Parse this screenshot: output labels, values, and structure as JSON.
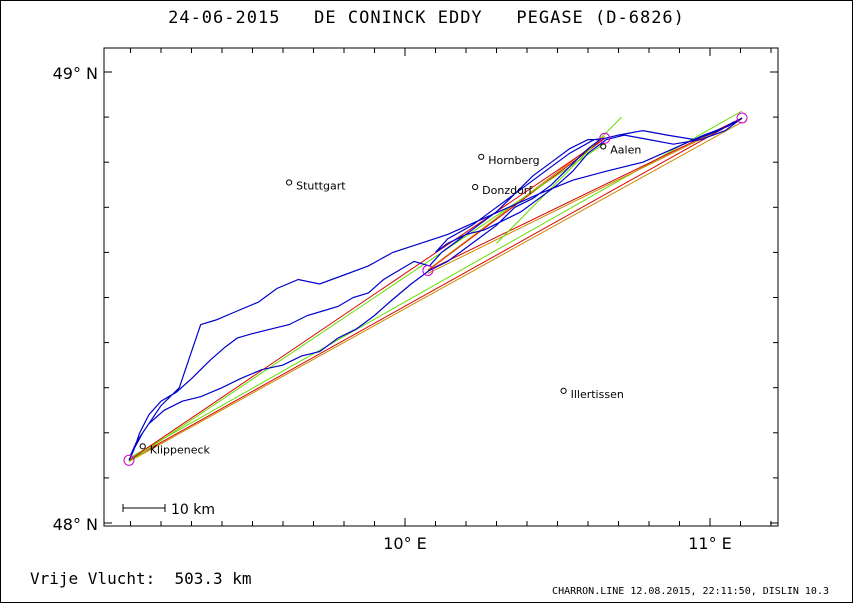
{
  "title": "24-06-2015   DE CONINCK EDDY   PEGASE (D-6826)",
  "axis": {
    "lat_labels": [
      {
        "lat": 49,
        "text": "49° N"
      },
      {
        "lat": 48,
        "text": "48° N"
      }
    ],
    "lon_labels": [
      {
        "lon": 10,
        "text": "10° E"
      },
      {
        "lon": 11,
        "text": "11° E"
      }
    ],
    "lon_range": [
      9.0,
      11.22
    ],
    "lat_range": [
      48.0,
      49.04
    ]
  },
  "scale_bar": {
    "label": "10 km"
  },
  "places": [
    {
      "name": "Stuttgart",
      "lon": 9.62,
      "lat": 48.755
    },
    {
      "name": "Hornberg",
      "lon": 10.25,
      "lat": 48.812
    },
    {
      "name": "Donzdorf",
      "lon": 10.23,
      "lat": 48.745
    },
    {
      "name": "Aalen",
      "lon": 10.65,
      "lat": 48.835
    },
    {
      "name": "Illertissen",
      "lon": 10.52,
      "lat": 48.293
    },
    {
      "name": "Klippeneck",
      "lon": 9.14,
      "lat": 48.17
    }
  ],
  "turnpoints": [
    {
      "lon": 9.095,
      "lat": 48.139
    },
    {
      "lon": 11.105,
      "lat": 48.898
    },
    {
      "lon": 10.075,
      "lat": 48.56
    },
    {
      "lon": 10.655,
      "lat": 48.853
    }
  ],
  "colors": {
    "track": "#0000cc",
    "leg_red": "#dd0000",
    "leg_green": "#66dd00",
    "turnpoint": "#cc00cc",
    "leg_orange": "#cc8800"
  },
  "distance": {
    "label": "Vrije Vlucht:",
    "value": "503.3 km"
  },
  "footer": "CHARRON.LINE 12.08.2015, 22:11:50, DISLIN 10.3"
}
